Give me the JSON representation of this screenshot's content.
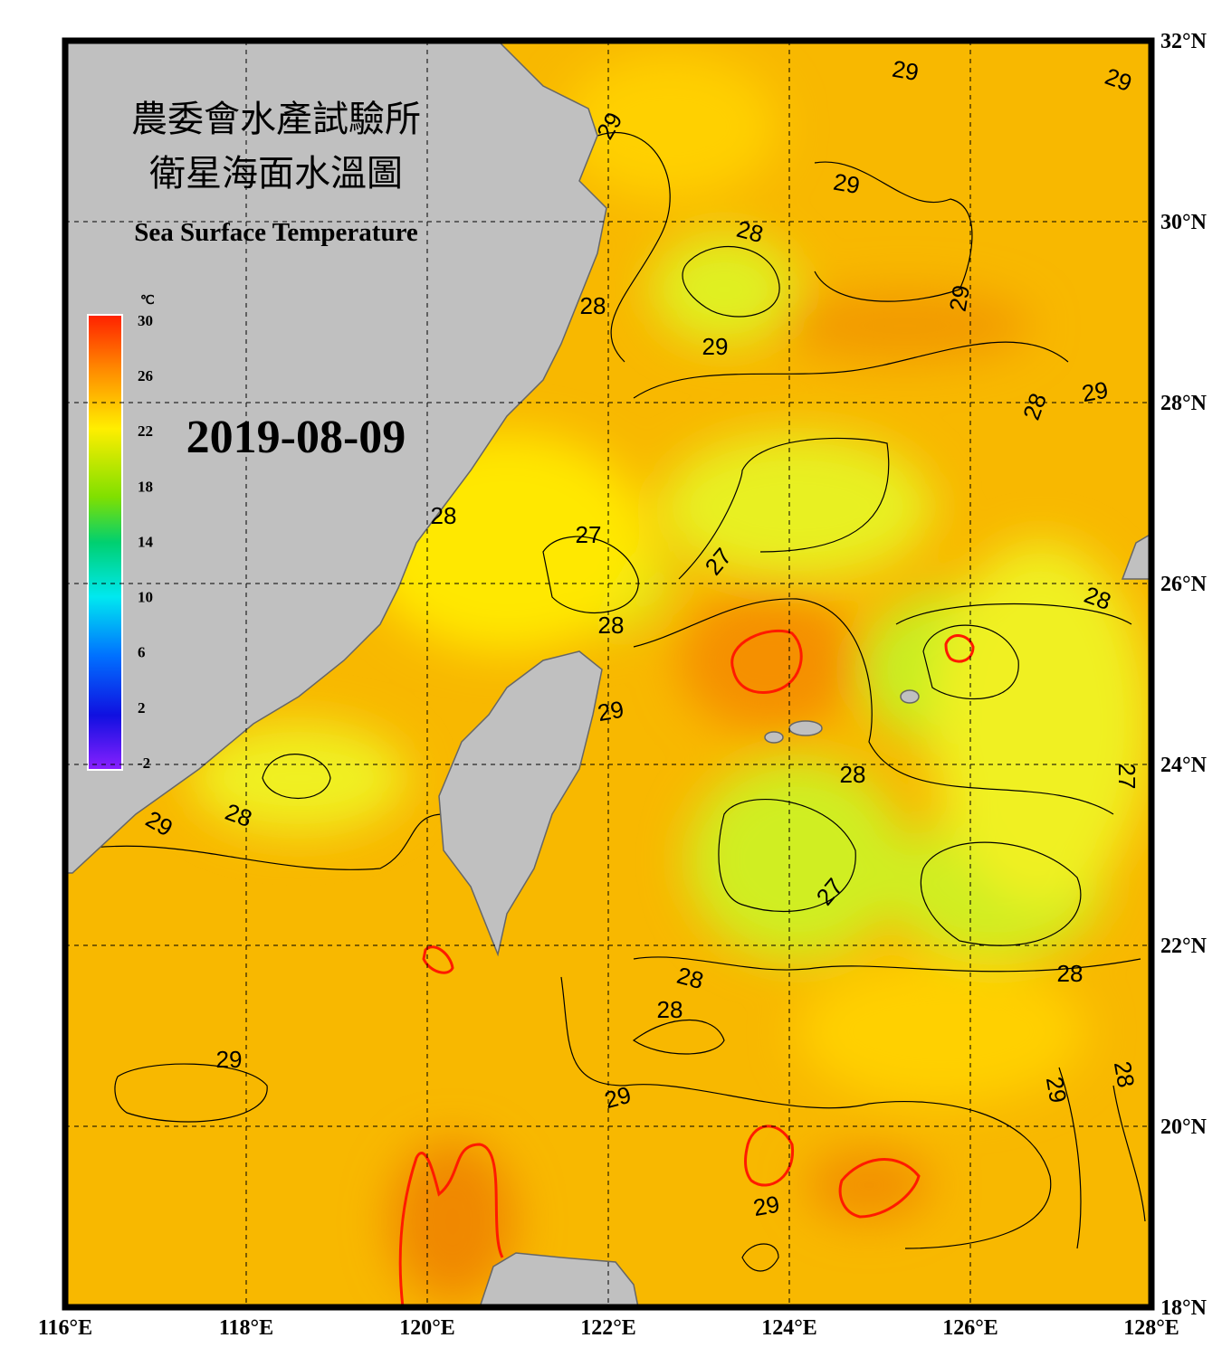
{
  "header": {
    "title_line1": "農委會水產試驗所",
    "title_line2": "衛星海面水溫圖",
    "subtitle": "Sea Surface Temperature",
    "date": "2019-08-09"
  },
  "colorbar": {
    "unit": "℃",
    "range": [
      -2,
      30
    ],
    "ticks": [
      30,
      26,
      22,
      18,
      14,
      10,
      6,
      2,
      -2
    ]
  },
  "map": {
    "lon_range": [
      116,
      128
    ],
    "lat_range": [
      18,
      32
    ],
    "lon_ticks": [
      {
        "value": 116,
        "label": "116°E"
      },
      {
        "value": 118,
        "label": "118°E"
      },
      {
        "value": 120,
        "label": "120°E"
      },
      {
        "value": 122,
        "label": "122°E"
      },
      {
        "value": 124,
        "label": "124°E"
      },
      {
        "value": 126,
        "label": "126°E"
      },
      {
        "value": 128,
        "label": "128°E"
      }
    ],
    "lat_ticks": [
      {
        "value": 32,
        "label": "32°N"
      },
      {
        "value": 30,
        "label": "30°N"
      },
      {
        "value": 28,
        "label": "28°N"
      },
      {
        "value": 26,
        "label": "26°N"
      },
      {
        "value": 24,
        "label": "24°N"
      },
      {
        "value": 22,
        "label": "22°N"
      },
      {
        "value": 20,
        "label": "20°N"
      },
      {
        "value": 18,
        "label": "18°N"
      }
    ],
    "contour_labels": [
      29,
      29,
      29,
      29,
      28,
      29,
      28,
      29,
      28,
      29,
      28,
      27,
      27,
      28,
      28,
      29,
      28,
      27,
      29,
      28,
      27,
      28,
      28,
      28,
      29,
      28,
      29,
      29,
      29
    ]
  }
}
